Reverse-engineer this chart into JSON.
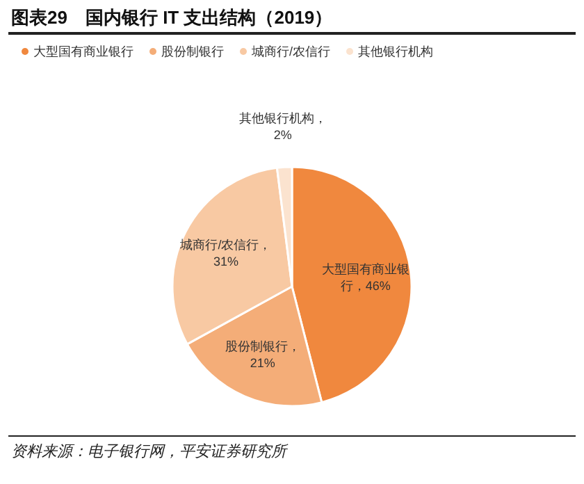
{
  "chart_data": {
    "type": "pie",
    "title": "图表29　国内银行 IT 支出结构（2019）",
    "categories": [
      "大型国有商业银行",
      "股份制银行",
      "城商行/农信行",
      "其他银行机构"
    ],
    "values": [
      46,
      21,
      31,
      2
    ],
    "colors": [
      "#f0883e",
      "#f4ad78",
      "#f8c9a3",
      "#fbe3cf"
    ],
    "value_labels": [
      "大型国有商业银行，46%",
      "股份制银行，21%",
      "城商行/农信行，31%",
      "其他银行机构，2%"
    ],
    "legend": "top",
    "annotations": [
      "资料来源：电子银行网，平安证券研究所"
    ]
  }
}
